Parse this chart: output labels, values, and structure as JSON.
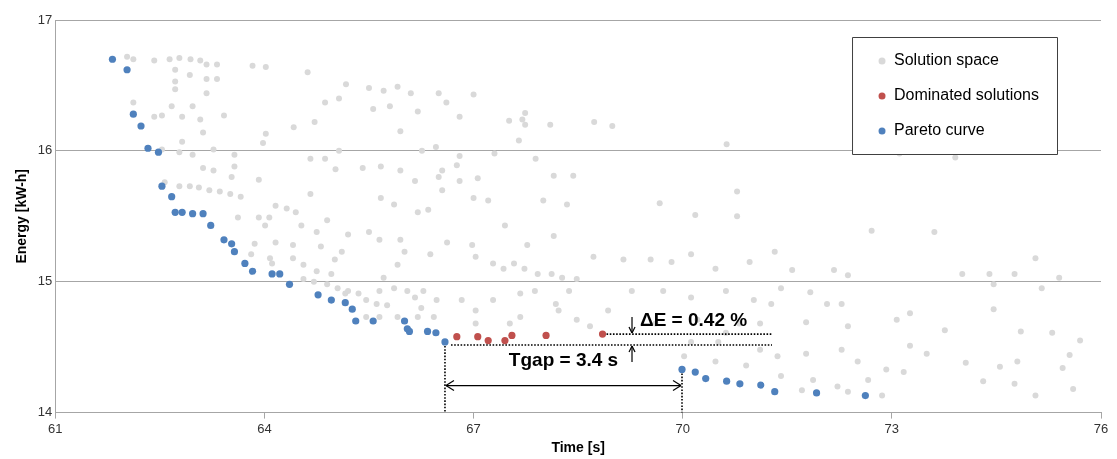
{
  "chart_data": {
    "type": "scatter",
    "xlabel": "Time [s]",
    "ylabel": "Energy [kW-h]",
    "xlim": [
      61,
      76
    ],
    "xticks": [
      61,
      64,
      67,
      70,
      73,
      76
    ],
    "ylim": [
      14,
      17
    ],
    "yticks": [
      14,
      15,
      16,
      17
    ],
    "grid": "y",
    "legend": "top right",
    "marker": "circle",
    "annotations": [
      "ΔE = 0.42 %",
      "Tgap = 3.4 s"
    ],
    "series": [
      {
        "name": "Solution space",
        "color": "#d9d9d9",
        "x": [
          62.03,
          62.12,
          62.42,
          62.64,
          62.78,
          62.94,
          63.08,
          63.17,
          63.32,
          63.83,
          64.02,
          64.62,
          65.17,
          65.5,
          65.71,
          65.91,
          66.1,
          62.72,
          62.93,
          62.72,
          63.17,
          63.32,
          63.17,
          62.72,
          62.12,
          62.67,
          62.97,
          62.42,
          62.53,
          62.82,
          63.08,
          63.42,
          63.12,
          62.82,
          64.02,
          63.98,
          64.42,
          64.72,
          64.87,
          65.07,
          65.56,
          65.8,
          65.95,
          66.2,
          62.53,
          62.78,
          62.97,
          63.27,
          63.57,
          63.12,
          63.27,
          63.57,
          63.53,
          64.66,
          64.87,
          65.07,
          65.02,
          65.41,
          65.67,
          65.95,
          66.26,
          63.92,
          64.66,
          65.67,
          65.86,
          66.16,
          62.57,
          62.78,
          62.93,
          63.06,
          63.21,
          63.36,
          63.51,
          63.66,
          64.16,
          64.32,
          63.62,
          63.92,
          64.45,
          64.07,
          64.01,
          64.53,
          64.9,
          64.75,
          65.2,
          65.5,
          65.65,
          65.95,
          63.86,
          64.16,
          64.41,
          64.81,
          65.11,
          66.01,
          63.81,
          64.08,
          64.41,
          64.56,
          64.75,
          64.96,
          64.11,
          65.01,
          65.91,
          64.56,
          64.71,
          64.9,
          65.05,
          65.16,
          65.35,
          65.46,
          65.61,
          65.76,
          65.71,
          65.86,
          65.65,
          66.05,
          66.16,
          66.25,
          65.91,
          66.2,
          65.46,
          65.65,
          65.2,
          66.5,
          66.61,
          67.0,
          66.8,
          67.51,
          67.7,
          67.74,
          67.74,
          68.1,
          68.73,
          68.99,
          67.65,
          66.46,
          66.8,
          67.3,
          67.89,
          70.63,
          66.55,
          66.76,
          66.5,
          66.8,
          67.06,
          68.15,
          68.43,
          66.55,
          67.0,
          67.21,
          68.0,
          68.34,
          69.67,
          70.78,
          66.35,
          70.18,
          70.78,
          66.2,
          67.45,
          68.15,
          66.62,
          66.98,
          67.77,
          66.38,
          67.03,
          67.28,
          67.43,
          67.58,
          67.73,
          67.92,
          68.12,
          68.27,
          68.48,
          68.72,
          69.15,
          69.54,
          69.84,
          70.12,
          70.47,
          70.96,
          71.32,
          66.28,
          66.47,
          66.83,
          67.03,
          67.28,
          67.67,
          67.88,
          68.18,
          68.37,
          68.93,
          69.27,
          69.72,
          70.12,
          70.62,
          71.02,
          71.41,
          67.67,
          68.22,
          68.48,
          68.67,
          67.52,
          67.03,
          66.43,
          69.61,
          70.21,
          70.81,
          71.11,
          70.62,
          70.12,
          70.51,
          70.02,
          70.47,
          70.91,
          71.11,
          71.36,
          71.41,
          72.71,
          73.61,
          75.06,
          71.57,
          72.17,
          72.37,
          74.01,
          74.4,
          74.76,
          75.4,
          74.46,
          75.15,
          71.83,
          72.28,
          71.27,
          72.07,
          74.46,
          71.77,
          72.37,
          73.07,
          73.26,
          73.76,
          74.85,
          75.3,
          75.7,
          75.55,
          73.5,
          74.06,
          72.28,
          73.26,
          71.77,
          72.51,
          72.92,
          73.17,
          72.66,
          71.87,
          72.22,
          72.37,
          72.86,
          74.31,
          74.55,
          74.8,
          74.76,
          75.06,
          75.45,
          75.6,
          73.11,
          73.91,
          71.71
        ],
        "values": [
          16.72,
          16.7,
          16.69,
          16.7,
          16.71,
          16.7,
          16.69,
          16.66,
          16.66,
          16.65,
          16.64,
          16.6,
          16.51,
          16.48,
          16.46,
          16.49,
          16.44,
          16.62,
          16.58,
          16.53,
          16.55,
          16.55,
          16.44,
          16.47,
          16.37,
          16.34,
          16.34,
          16.26,
          16.27,
          16.26,
          16.24,
          16.27,
          16.14,
          16.07,
          16.13,
          16.06,
          16.18,
          16.22,
          16.37,
          16.4,
          16.32,
          16.34,
          16.15,
          16.3,
          16.01,
          15.99,
          15.97,
          16.01,
          15.97,
          15.87,
          15.85,
          15.88,
          15.8,
          15.94,
          15.94,
          16.0,
          15.86,
          15.87,
          15.88,
          15.85,
          16.0,
          15.78,
          15.67,
          15.64,
          15.59,
          15.77,
          15.76,
          15.73,
          15.73,
          15.72,
          15.7,
          15.69,
          15.67,
          15.65,
          15.58,
          15.56,
          15.49,
          15.49,
          15.53,
          15.49,
          15.43,
          15.43,
          15.47,
          15.38,
          15.36,
          15.38,
          15.32,
          15.32,
          15.29,
          15.3,
          15.28,
          15.27,
          15.23,
          15.23,
          15.21,
          15.18,
          15.18,
          15.13,
          15.08,
          15.06,
          15.14,
          15.17,
          15.13,
          15.02,
          15.0,
          14.98,
          14.95,
          14.91,
          14.91,
          14.86,
          14.83,
          14.82,
          15.03,
          14.95,
          14.93,
          14.93,
          14.88,
          14.8,
          14.73,
          14.73,
          14.73,
          14.73,
          14.93,
          16.44,
          16.37,
          16.43,
          16.26,
          16.23,
          16.24,
          16.29,
          16.2,
          16.2,
          16.22,
          16.19,
          16.08,
          16.03,
          15.96,
          15.98,
          15.94,
          16.05,
          15.85,
          15.89,
          15.8,
          15.77,
          15.79,
          15.81,
          15.81,
          15.7,
          15.64,
          15.62,
          15.62,
          15.59,
          15.6,
          15.69,
          15.55,
          15.51,
          15.5,
          15.53,
          15.43,
          15.35,
          15.3,
          15.28,
          15.28,
          15.21,
          15.19,
          15.14,
          15.1,
          15.14,
          15.1,
          15.06,
          15.06,
          15.03,
          15.02,
          15.19,
          15.17,
          15.17,
          15.15,
          15.21,
          15.1,
          15.15,
          15.23,
          14.93,
          14.86,
          14.86,
          14.78,
          14.86,
          14.91,
          14.93,
          14.83,
          14.93,
          14.78,
          14.93,
          14.93,
          14.88,
          14.93,
          14.86,
          14.95,
          14.73,
          14.78,
          14.71,
          14.66,
          14.68,
          14.68,
          14.73,
          14.68,
          14.71,
          14.68,
          14.68,
          14.61,
          14.54,
          14.54,
          14.43,
          14.39,
          14.36,
          14.48,
          14.43,
          14.28,
          15.39,
          15.38,
          15.18,
          15.09,
          15.09,
          15.05,
          15.06,
          15.06,
          15.06,
          15.03,
          14.98,
          14.95,
          14.92,
          14.83,
          14.83,
          14.83,
          14.79,
          14.69,
          14.66,
          14.71,
          14.76,
          14.63,
          14.62,
          14.61,
          14.55,
          14.44,
          14.45,
          14.38,
          14.48,
          14.51,
          14.45,
          14.39,
          14.33,
          14.31,
          14.25,
          14.25,
          14.2,
          14.16,
          14.13,
          14.24,
          14.35,
          14.39,
          14.22,
          14.13,
          14.34,
          14.18,
          15.98,
          15.95,
          14.17
        ]
      },
      {
        "name": "Dominated solutions",
        "color": "#c0504d",
        "x": [
          66.76,
          67.06,
          67.21,
          67.45,
          67.55,
          68.04,
          68.85
        ],
        "values": [
          14.58,
          14.58,
          14.55,
          14.55,
          14.59,
          14.59,
          14.6
        ]
      },
      {
        "name": "Pareto curve",
        "color": "#4f81bd",
        "x": [
          61.82,
          62.03,
          62.12,
          62.23,
          62.33,
          62.48,
          62.53,
          62.67,
          62.72,
          62.82,
          62.97,
          63.12,
          63.23,
          63.42,
          63.53,
          63.57,
          63.72,
          63.83,
          64.11,
          64.22,
          64.36,
          64.77,
          64.96,
          65.16,
          65.26,
          65.31,
          65.56,
          66.01,
          66.05,
          66.08,
          66.34,
          66.46,
          66.59,
          69.99,
          70.18,
          70.33,
          70.63,
          70.82,
          71.12,
          71.32,
          71.92,
          72.62
        ],
        "values": [
          16.7,
          16.62,
          16.28,
          16.19,
          16.02,
          15.99,
          15.73,
          15.65,
          15.53,
          15.53,
          15.52,
          15.52,
          15.43,
          15.32,
          15.29,
          15.23,
          15.14,
          15.08,
          15.06,
          15.06,
          14.98,
          14.9,
          14.86,
          14.84,
          14.79,
          14.7,
          14.7,
          14.7,
          14.64,
          14.62,
          14.62,
          14.61,
          14.54,
          14.33,
          14.31,
          14.26,
          14.24,
          14.22,
          14.21,
          14.16,
          14.15,
          14.13
        ]
      }
    ]
  }
}
